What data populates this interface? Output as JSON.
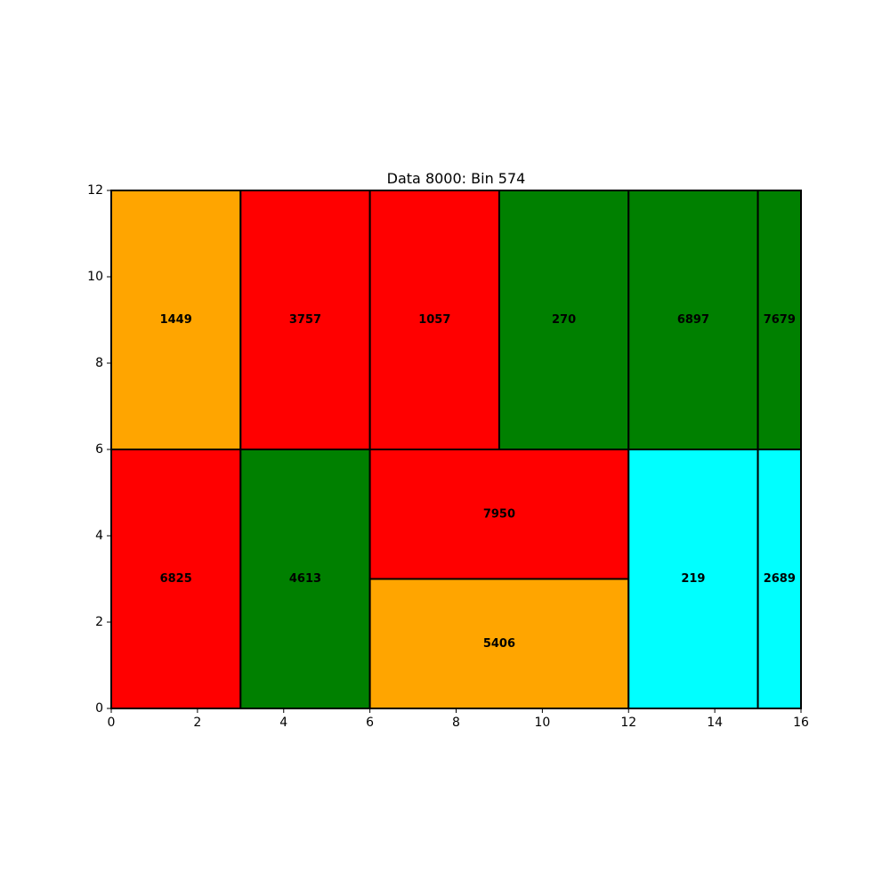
{
  "chart_data": {
    "type": "treemap",
    "title": "Data 8000: Bin 574",
    "xlim": [
      0,
      16
    ],
    "ylim": [
      0,
      12
    ],
    "xticks": [
      0,
      2,
      4,
      6,
      8,
      10,
      12,
      14,
      16
    ],
    "yticks": [
      0,
      2,
      4,
      6,
      8,
      10,
      12
    ],
    "rectangles": [
      {
        "label": "1449",
        "x": 0,
        "y": 6,
        "w": 3,
        "h": 6,
        "color": "#ffa500"
      },
      {
        "label": "3757",
        "x": 3,
        "y": 6,
        "w": 3,
        "h": 6,
        "color": "#ff0000"
      },
      {
        "label": "1057",
        "x": 6,
        "y": 6,
        "w": 3,
        "h": 6,
        "color": "#ff0000"
      },
      {
        "label": "270",
        "x": 9,
        "y": 6,
        "w": 3,
        "h": 6,
        "color": "#008000"
      },
      {
        "label": "6897",
        "x": 12,
        "y": 6,
        "w": 3,
        "h": 6,
        "color": "#008000"
      },
      {
        "label": "7679",
        "x": 15,
        "y": 6,
        "w": 1,
        "h": 6,
        "color": "#008000"
      },
      {
        "label": "6825",
        "x": 0,
        "y": 0,
        "w": 3,
        "h": 6,
        "color": "#ff0000"
      },
      {
        "label": "4613",
        "x": 3,
        "y": 0,
        "w": 3,
        "h": 6,
        "color": "#008000"
      },
      {
        "label": "7950",
        "x": 6,
        "y": 3,
        "w": 6,
        "h": 3,
        "color": "#ff0000"
      },
      {
        "label": "5406",
        "x": 6,
        "y": 0,
        "w": 6,
        "h": 3,
        "color": "#ffa500"
      },
      {
        "label": "219",
        "x": 12,
        "y": 0,
        "w": 3,
        "h": 6,
        "color": "#00ffff"
      },
      {
        "label": "2689",
        "x": 15,
        "y": 0,
        "w": 1,
        "h": 6,
        "color": "#00ffff"
      }
    ]
  }
}
